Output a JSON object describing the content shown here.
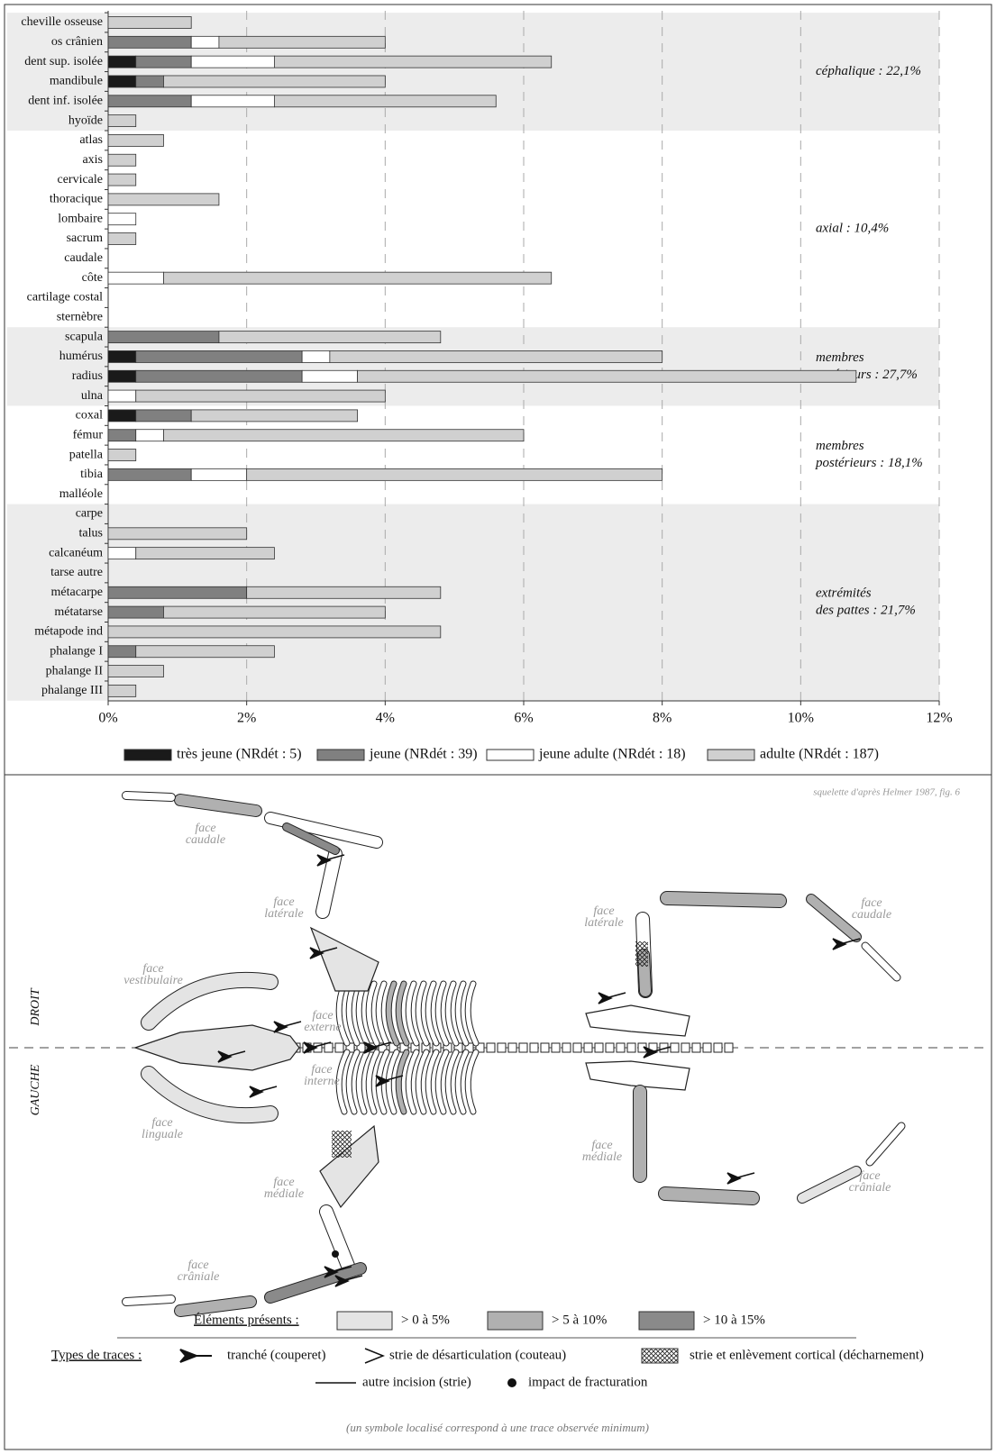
{
  "chart_data": {
    "type": "bar",
    "orientation": "horizontal",
    "stacked": true,
    "categories": [
      "cheville osseuse",
      "os crânien",
      "dent sup. isolée",
      "mandibule",
      "dent inf. isolée",
      "hyoïde",
      "atlas",
      "axis",
      "cervicale",
      "thoracique",
      "lombaire",
      "sacrum",
      "caudale",
      "côte",
      "cartilage costal",
      "sternèbre",
      "scapula",
      "humérus",
      "radius",
      "ulna",
      "coxal",
      "fémur",
      "patella",
      "tibia",
      "malléole",
      "carpe",
      "talus",
      "calcanéum",
      "tarse autre",
      "métacarpe",
      "métatarse",
      "métapode ind",
      "phalange I",
      "phalange II",
      "phalange III"
    ],
    "series": [
      {
        "name": "très jeune (NRdét : 5)",
        "color": "#1a1a1a",
        "values": [
          0,
          0,
          0.4,
          0.4,
          0,
          0,
          0,
          0,
          0,
          0,
          0,
          0,
          0,
          0,
          0,
          0,
          0,
          0.4,
          0.4,
          0,
          0.4,
          0,
          0,
          0,
          0,
          0,
          0,
          0,
          0,
          0,
          0,
          0,
          0,
          0,
          0
        ]
      },
      {
        "name": "jeune (NRdét : 39)",
        "color": "#808080",
        "values": [
          0,
          1.2,
          0.8,
          0.4,
          1.2,
          0,
          0,
          0,
          0,
          0,
          0,
          0,
          0,
          0,
          0,
          0,
          1.6,
          2.4,
          2.4,
          0,
          0.8,
          0.4,
          0,
          1.2,
          0,
          0,
          0,
          0,
          0,
          2.0,
          0.8,
          0,
          0.4,
          0,
          0
        ]
      },
      {
        "name": "jeune adulte (NRdét : 18)",
        "color": "#ffffff",
        "values": [
          0,
          0.4,
          1.2,
          0,
          1.2,
          0,
          0,
          0,
          0,
          0,
          0.4,
          0,
          0,
          0.8,
          0,
          0,
          0,
          0.4,
          0.8,
          0.4,
          0,
          0.4,
          0,
          0.8,
          0,
          0,
          0,
          0.4,
          0,
          0,
          0,
          0,
          0,
          0,
          0
        ]
      },
      {
        "name": "adulte (NRdét : 187)",
        "color": "#d0d0d0",
        "values": [
          1.2,
          2.4,
          4.0,
          3.2,
          3.2,
          0.4,
          0.8,
          0.4,
          0.4,
          1.6,
          0,
          0.4,
          0,
          5.6,
          0,
          0,
          3.2,
          4.8,
          7.2,
          3.6,
          2.4,
          5.2,
          0.4,
          6.0,
          0,
          0,
          2.0,
          2.0,
          0,
          2.8,
          3.2,
          4.8,
          2.0,
          0.8,
          0.4
        ]
      }
    ],
    "xlim": [
      0,
      12
    ],
    "xticks": [
      {
        "value": 0,
        "label": "0%"
      },
      {
        "value": 2,
        "label": "2%"
      },
      {
        "value": 4,
        "label": "4%"
      },
      {
        "value": 6,
        "label": "6%"
      },
      {
        "value": 8,
        "label": "8%"
      },
      {
        "value": 10,
        "label": "10%"
      },
      {
        "value": 12,
        "label": "12%"
      }
    ],
    "grid": true,
    "groups": [
      [
        "céphalique : 22,1%"
      ],
      [
        "axial : 10,4%"
      ],
      [
        "membres",
        "antérieurs : 27,7%"
      ],
      [
        "membres",
        "postérieurs : 18,1%"
      ],
      [
        "extrémités",
        "des pattes : 21,7%"
      ]
    ]
  },
  "diagram": {
    "credit": "squelette d'après Helmer 1987, fig. 6",
    "sides": [
      "DROIT",
      "GAUCHE"
    ],
    "labels": [
      [
        "face",
        "caudale"
      ],
      [
        "face",
        "latérale"
      ],
      [
        "face",
        "vestibulaire"
      ],
      [
        "face",
        "externe"
      ],
      [
        "face",
        "interne"
      ],
      [
        "face",
        "linguale"
      ],
      [
        "face",
        "médiale"
      ],
      [
        "face",
        "crâniale"
      ],
      [
        "face",
        "latérale"
      ],
      [
        "face",
        "caudale"
      ],
      [
        "face",
        "médiale"
      ],
      [
        "face",
        "crâniale"
      ]
    ],
    "presence_title": "Éléments présents :",
    "presence": [
      "> 0  à 5%",
      "> 5 à 10%",
      "> 10 à 15%"
    ],
    "traces_title": "Types de traces :",
    "traces": [
      "tranché (couperet)",
      "strie de désarticulation (couteau)",
      "strie et enlèvement cortical (décharnement)",
      "autre incision (strie)",
      "impact de fracturation"
    ],
    "note": "(un symbole localisé correspond à une trace observée minimum)"
  }
}
